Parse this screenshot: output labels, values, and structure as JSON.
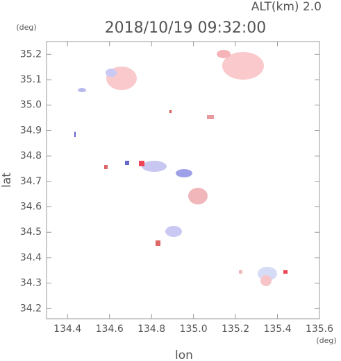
{
  "chart_data": {
    "type": "map",
    "title": "2018/10/19 09:32:00",
    "subtitle": "ALT(km) 2.0",
    "x_label": "lon",
    "y_label": "lat",
    "x_unit": "(deg)",
    "y_unit": "(deg)",
    "xlim": [
      134.3,
      135.6
    ],
    "xticks": [
      134.4,
      134.6,
      134.8,
      {
        "value": 135,
        "label": "135.0"
      },
      135.2,
      135.4,
      135.6
    ],
    "ylim": [
      34.16,
      35.25
    ],
    "yticks": [
      34.2,
      34.3,
      34.4,
      34.5,
      34.6,
      34.7,
      34.8,
      34.9,
      {
        "value": 35,
        "label": "35.0"
      },
      35.1,
      35.2
    ]
  }
}
